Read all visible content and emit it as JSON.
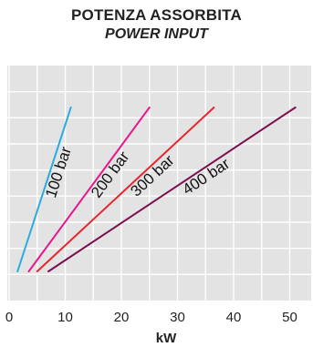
{
  "header": {
    "title": "POTENZA ASSORBITA",
    "subtitle": "POWER INPUT"
  },
  "chart_data": {
    "type": "line",
    "title": "POTENZA ASSORBITA",
    "subtitle": "POWER INPUT",
    "xlabel": "kW",
    "ylabel": "",
    "xlim": [
      0,
      53
    ],
    "x_ticks": [
      0,
      10,
      20,
      30,
      40,
      50
    ],
    "grid": true,
    "legend": "none",
    "series": [
      {
        "name": "100 bar",
        "color": "#29abe2",
        "x": [
          1.5,
          11
        ],
        "y": [
          0,
          1
        ]
      },
      {
        "name": "200 bar",
        "color": "#e6178b",
        "x": [
          3.5,
          25
        ],
        "y": [
          0,
          1
        ]
      },
      {
        "name": "300 bar",
        "color": "#e8252b",
        "x": [
          5,
          36.5
        ],
        "y": [
          0,
          1
        ]
      },
      {
        "name": "400 bar",
        "color": "#7a0f4f",
        "x": [
          7,
          51
        ],
        "y": [
          0,
          1
        ]
      }
    ]
  }
}
